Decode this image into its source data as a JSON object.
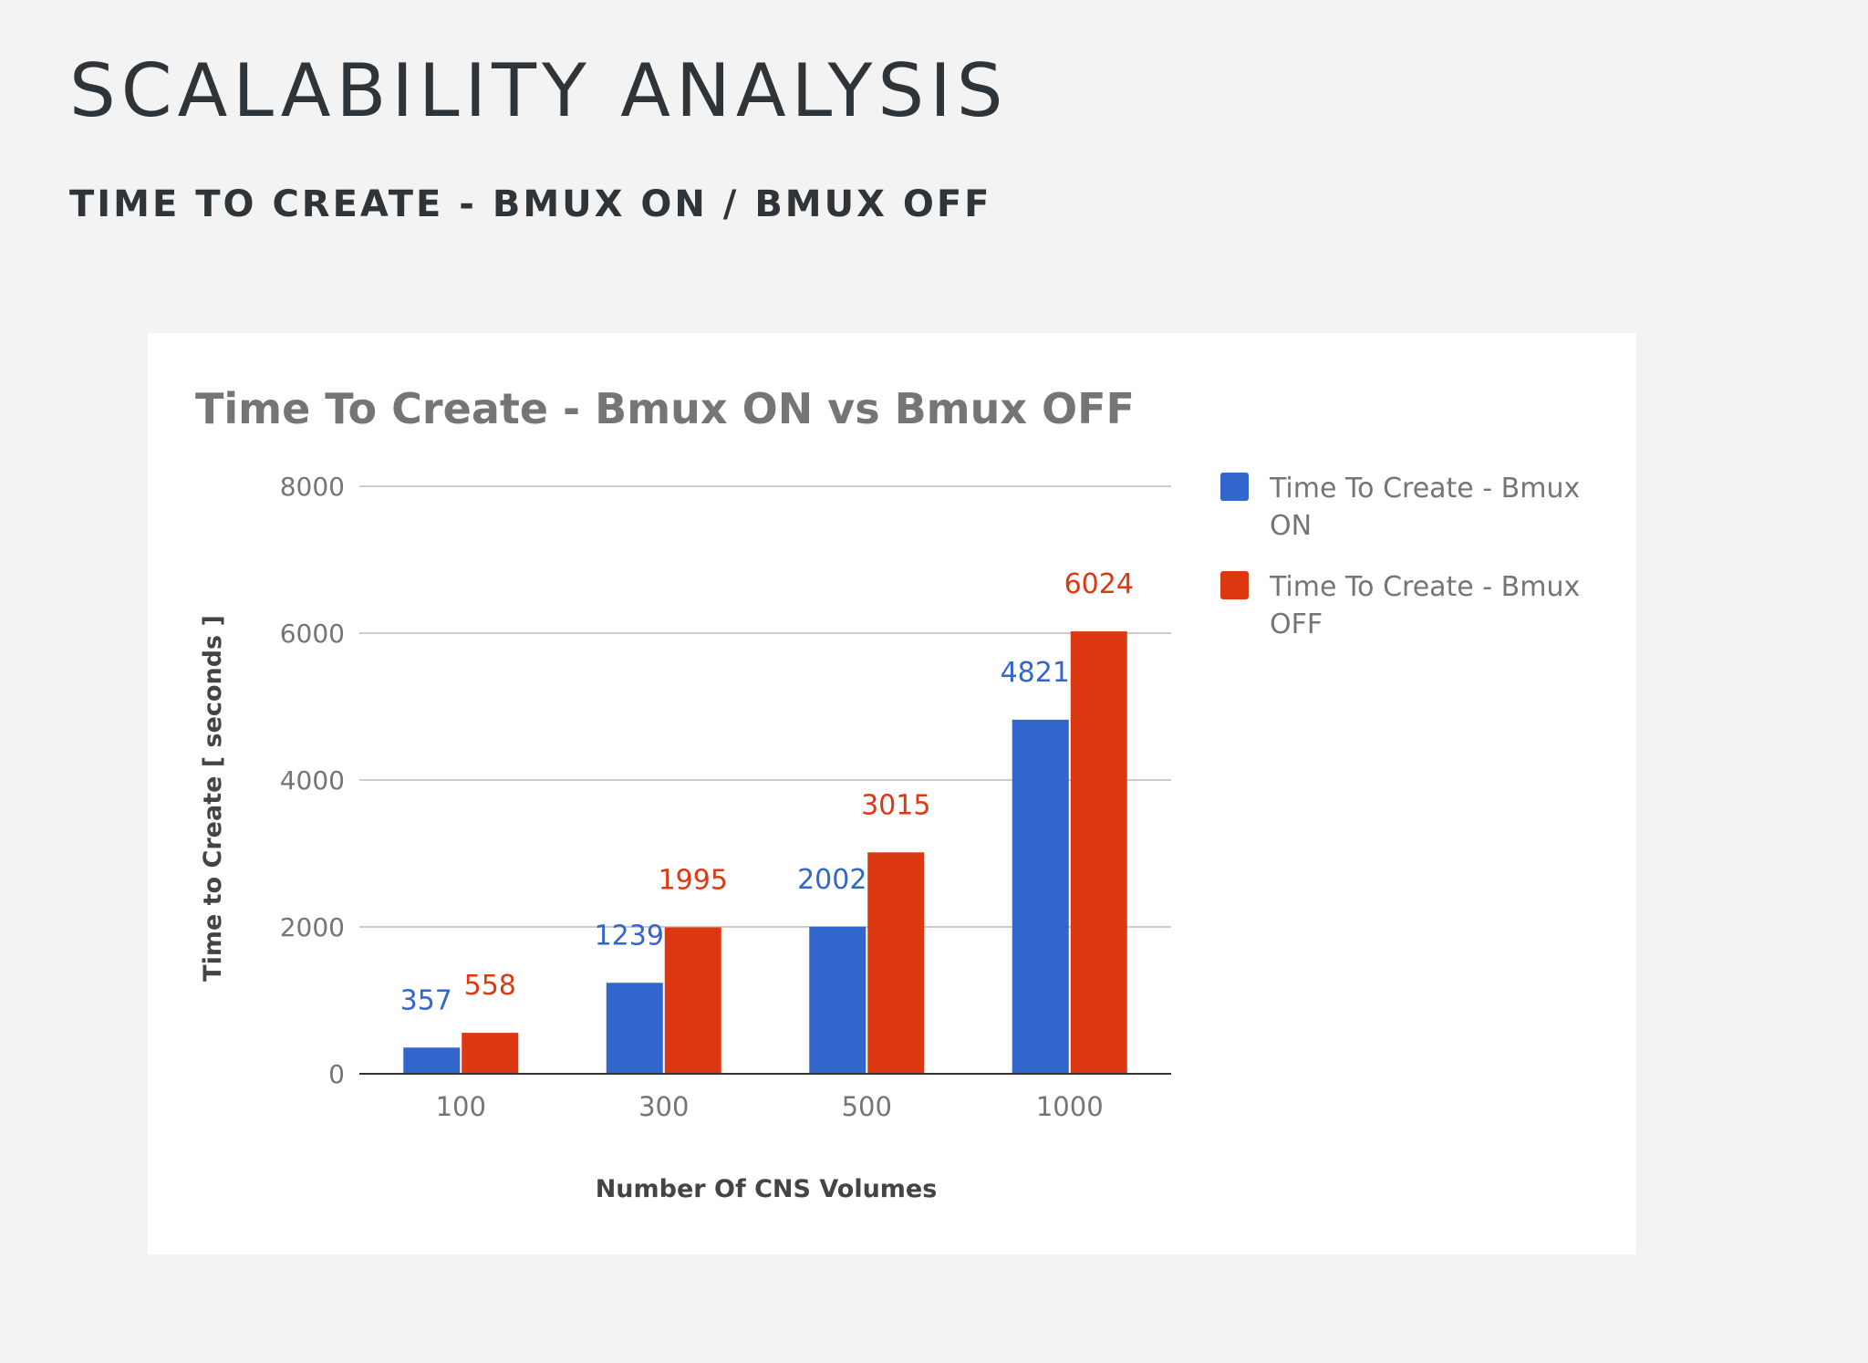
{
  "slide": {
    "title": "SCALABILITY ANALYSIS",
    "subtitle": "TIME TO CREATE - BMUX ON / BMUX OFF"
  },
  "colors": {
    "background": "#f3f3f4",
    "heading": "#2f3438",
    "series_on": "#3366cc",
    "series_off": "#dc3912",
    "gridline": "#cccccc",
    "axis_text": "#757575"
  },
  "chart_data": {
    "type": "bar",
    "title": "Time To Create - Bmux ON vs Bmux OFF",
    "xlabel": "Number Of CNS Volumes",
    "ylabel": "Time to Create [ seconds ]",
    "categories": [
      "100",
      "300",
      "500",
      "1000"
    ],
    "series": [
      {
        "name": "Time To Create - Bmux ON",
        "legend_lines": [
          "Time To Create - Bmux",
          "ON"
        ],
        "color": "#3366cc",
        "values": [
          357,
          1239,
          2002,
          4821
        ]
      },
      {
        "name": "Time To Create - Bmux OFF",
        "legend_lines": [
          "Time To Create - Bmux",
          "OFF"
        ],
        "color": "#dc3912",
        "values": [
          558,
          1995,
          3015,
          6024
        ]
      }
    ],
    "ylim": [
      0,
      8000
    ],
    "yticks": [
      0,
      2000,
      4000,
      6000,
      8000
    ],
    "grid": true,
    "legend_position": "right",
    "data_labels": true
  }
}
